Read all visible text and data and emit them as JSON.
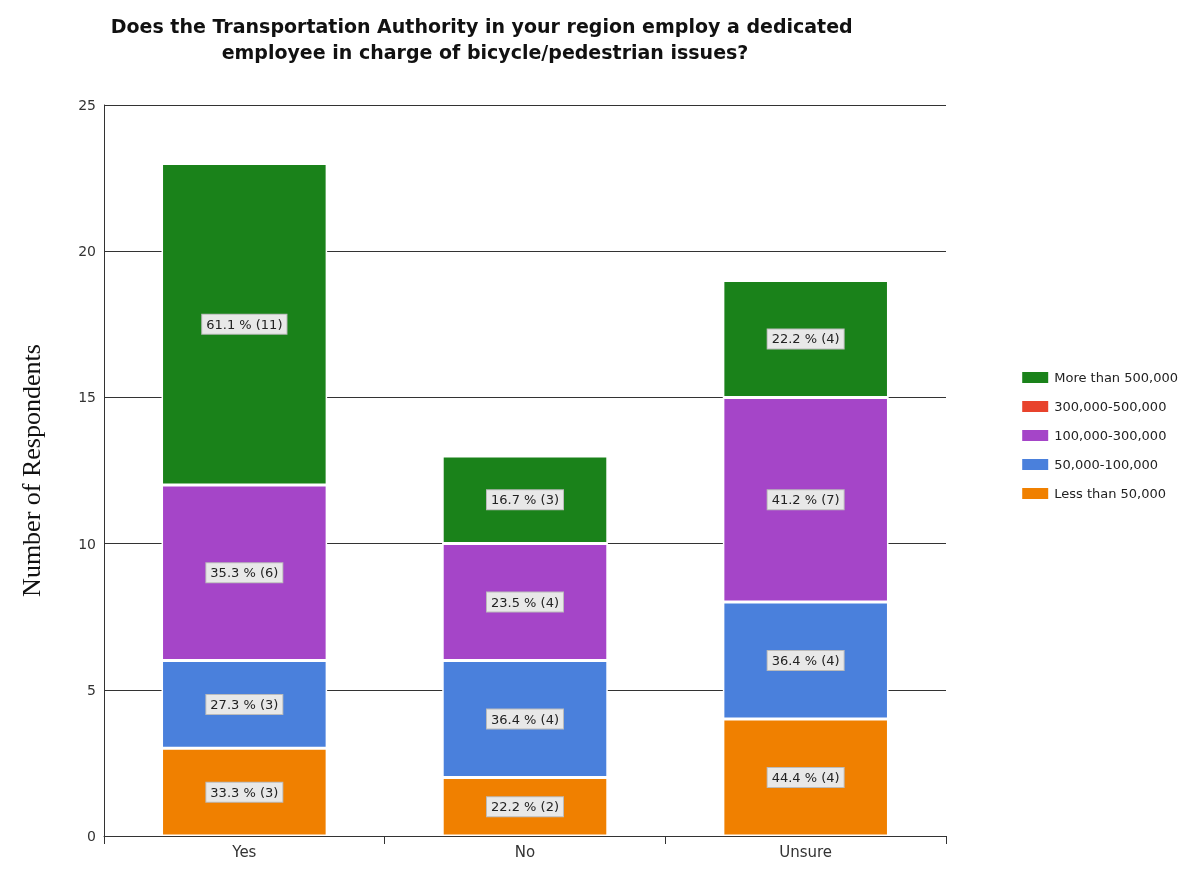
{
  "chart_data": {
    "type": "bar",
    "title": "Does the Transportation Authority in your region employ a dedicated employee in charge of bicycle/pedestrian issues?",
    "ylabel": "Number of Respondents",
    "categories": [
      "Yes",
      "No",
      "Unsure"
    ],
    "stacked": true,
    "ylim": [
      0,
      25
    ],
    "yticks": [
      0,
      5,
      10,
      15,
      20,
      25
    ],
    "grid": "y",
    "legend": "right",
    "series": [
      {
        "name": "Less than 50,000",
        "color": "#f08000",
        "values": [
          3,
          2,
          4
        ],
        "value_labels": [
          "33.3 % (3)",
          "22.2 % (2)",
          "44.4 % (4)"
        ]
      },
      {
        "name": "50,000-100,000",
        "color": "#4a80dc",
        "values": [
          3,
          4,
          4
        ],
        "value_labels": [
          "27.3 % (3)",
          "36.4 % (4)",
          "36.4 % (4)"
        ]
      },
      {
        "name": "100,000-300,000",
        "color": "#a545c8",
        "values": [
          6,
          4,
          7
        ],
        "value_labels": [
          "35.3 % (6)",
          "23.5 % (4)",
          "41.2 % (7)"
        ]
      },
      {
        "name": "300,000-500,000",
        "color": "#e8432c",
        "values": [
          0,
          0,
          0
        ],
        "value_labels": [
          null,
          null,
          null
        ]
      },
      {
        "name": "More than 500,000",
        "color": "#1a821a",
        "values": [
          11,
          3,
          4
        ],
        "value_labels": [
          "61.1 % (11)",
          "16.7 % (3)",
          "22.2 % (4)"
        ]
      }
    ]
  }
}
